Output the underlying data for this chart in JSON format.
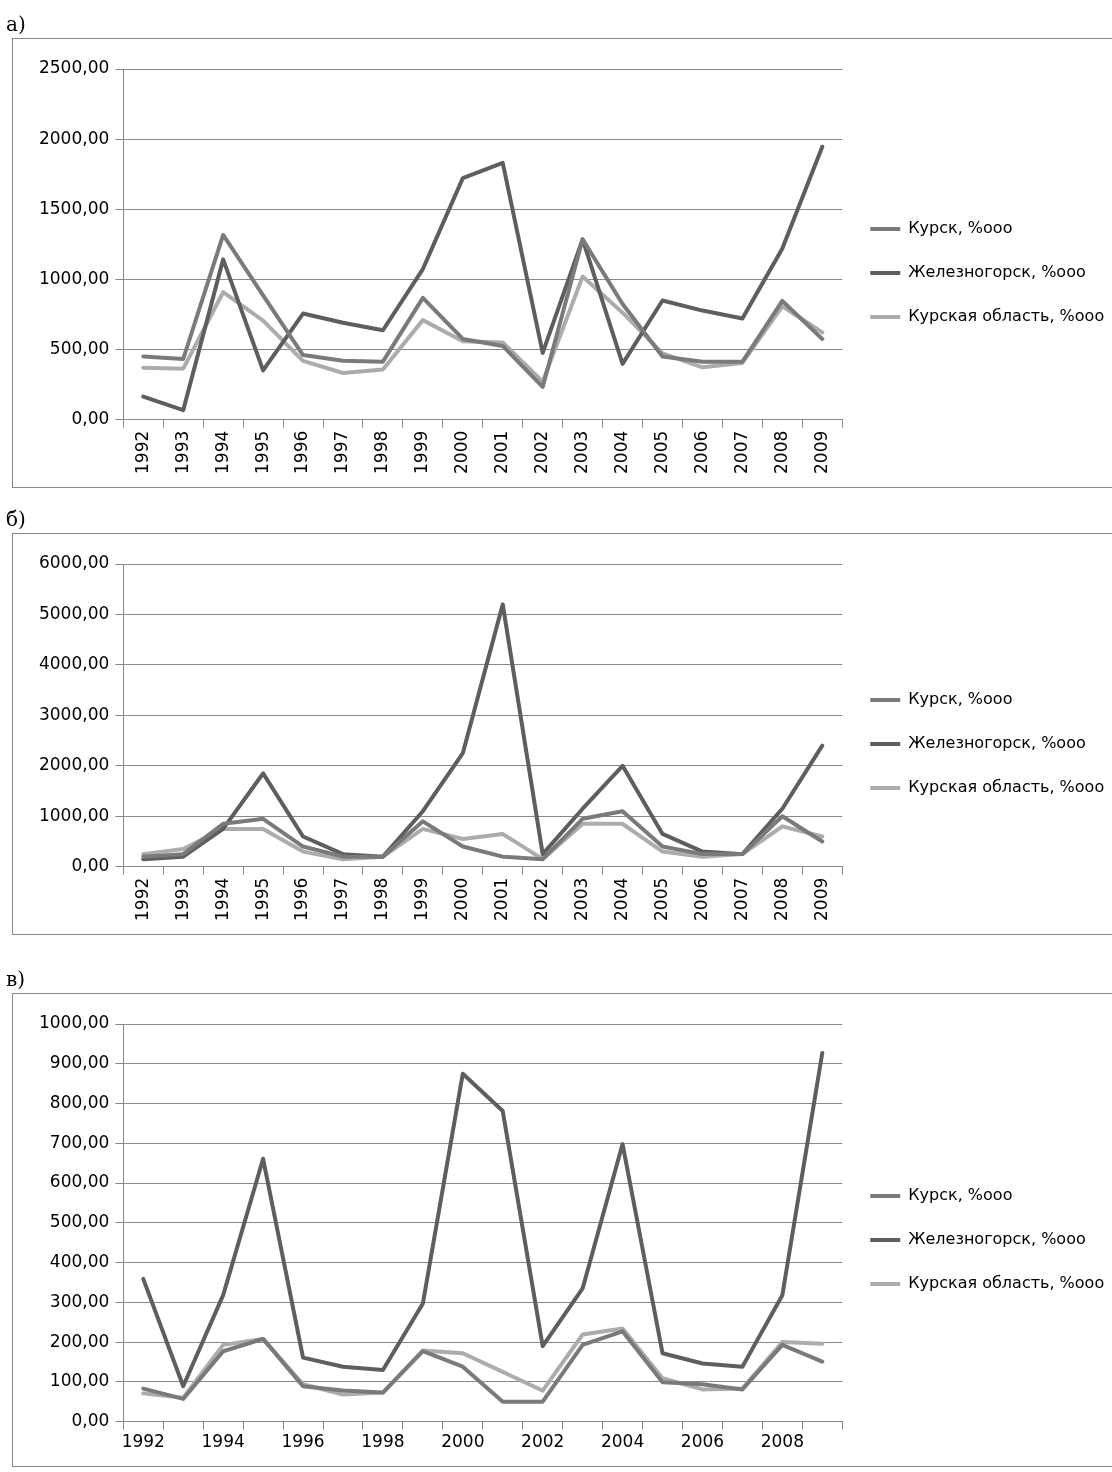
{
  "chart_data": [
    {
      "type": "line",
      "title": "а)",
      "categories": [
        "1992",
        "1993",
        "1994",
        "1995",
        "1996",
        "1997",
        "1998",
        "1999",
        "2000",
        "2001",
        "2002",
        "2003",
        "2004",
        "2005",
        "2006",
        "2007",
        "2008",
        "2009"
      ],
      "series": [
        {
          "name": "Курск, %ооо",
          "color": "#7a7a7a",
          "values": [
            451,
            433,
            1317,
            887,
            461,
            420,
            414,
            869,
            576,
            526,
            234,
            1286,
            825,
            451,
            414,
            414,
            847,
            576
          ]
        },
        {
          "name": "Железногорск, %ооо",
          "color": "#5e5e5e",
          "values": [
            165,
            68,
            1143,
            352,
            757,
            691,
            638,
            1074,
            1722,
            1831,
            476,
            1286,
            398,
            850,
            778,
            722,
            1220,
            1946
          ]
        },
        {
          "name": "Курская область, %ооо",
          "color": "#acacac",
          "values": [
            370,
            364,
            909,
            707,
            420,
            333,
            358,
            710,
            560,
            551,
            271,
            1021,
            763,
            473,
            374,
            405,
            809,
            623
          ]
        }
      ],
      "ylim": [
        0,
        2500
      ],
      "yticks": [
        {
          "value": 0,
          "label": "0,00"
        },
        {
          "value": 500,
          "label": "500,00"
        },
        {
          "value": 1000,
          "label": "1000,00"
        },
        {
          "value": 1500,
          "label": "1500,00"
        },
        {
          "value": 2000,
          "label": "2000,00"
        },
        {
          "value": 2500,
          "label": "2500,00"
        }
      ],
      "grid": "y",
      "legend": "right",
      "marker": "none",
      "line_style": "solid"
    },
    {
      "type": "line",
      "title": "б)",
      "categories": [
        "1992",
        "1993",
        "1994",
        "1995",
        "1996",
        "1997",
        "1998",
        "1999",
        "2000",
        "2001",
        "2002",
        "2003",
        "2004",
        "2005",
        "2006",
        "2007",
        "2008",
        "2009"
      ],
      "series": [
        {
          "name": "Курск, %ооо",
          "color": "#7a7a7a",
          "values": [
            200,
            250,
            850,
            950,
            400,
            200,
            200,
            900,
            400,
            200,
            150,
            950,
            1100,
            400,
            250,
            250,
            1000,
            500
          ]
        },
        {
          "name": "Железногорск, %ооо",
          "color": "#5e5e5e",
          "values": [
            150,
            200,
            750,
            1850,
            600,
            250,
            200,
            1100,
            2250,
            5200,
            250,
            1150,
            2000,
            650,
            300,
            250,
            1150,
            2400
          ]
        },
        {
          "name": "Курская область, %ооо",
          "color": "#acacac",
          "values": [
            250,
            350,
            750,
            750,
            300,
            150,
            200,
            750,
            550,
            650,
            150,
            850,
            850,
            300,
            200,
            250,
            800,
            600
          ]
        }
      ],
      "ylim": [
        0,
        6000
      ],
      "yticks": [
        {
          "value": 0,
          "label": "0,00"
        },
        {
          "value": 1000,
          "label": "1000,00"
        },
        {
          "value": 2000,
          "label": "2000,00"
        },
        {
          "value": 3000,
          "label": "3000,00"
        },
        {
          "value": 4000,
          "label": "4000,00"
        },
        {
          "value": 5000,
          "label": "5000,00"
        },
        {
          "value": 6000,
          "label": "6000,00"
        }
      ],
      "grid": "y",
      "legend": "right",
      "marker": "none",
      "line_style": "solid"
    },
    {
      "type": "line",
      "title": "в)",
      "categories": [
        "1992",
        null,
        "1994",
        null,
        "1996",
        null,
        "1998",
        null,
        "2000",
        null,
        "2002",
        null,
        "2004",
        null,
        "2006",
        null,
        "2008",
        null
      ],
      "series": [
        {
          "name": "Курск, %ооо",
          "color": "#7a7a7a",
          "values": [
            83,
            57,
            177,
            208,
            89,
            78,
            73,
            177,
            138,
            50,
            50,
            193,
            227,
            99,
            94,
            81,
            193,
            151
          ]
        },
        {
          "name": "Железногорск, %ооо",
          "color": "#5e5e5e",
          "values": [
            359,
            89,
            318,
            661,
            161,
            138,
            130,
            297,
            875,
            781,
            190,
            335,
            698,
            172,
            146,
            138,
            318,
            927
          ]
        },
        {
          "name": "Курская область, %ооо",
          "color": "#acacac",
          "values": [
            71,
            60,
            193,
            208,
            94,
            68,
            73,
            179,
            172,
            125,
            78,
            219,
            234,
            109,
            81,
            83,
            200,
            196
          ]
        }
      ],
      "ylim": [
        0,
        1000
      ],
      "yticks": [
        {
          "value": 0,
          "label": "0,00"
        },
        {
          "value": 100,
          "label": "100,00"
        },
        {
          "value": 200,
          "label": "200,00"
        },
        {
          "value": 300,
          "label": "300,00"
        },
        {
          "value": 400,
          "label": "400,00"
        },
        {
          "value": 500,
          "label": "500,00"
        },
        {
          "value": 600,
          "label": "600,00"
        },
        {
          "value": 700,
          "label": "700,00"
        },
        {
          "value": 800,
          "label": "800,00"
        },
        {
          "value": 900,
          "label": "900,00"
        },
        {
          "value": 1000,
          "label": "1000,00"
        }
      ],
      "grid": "y",
      "legend": "right",
      "marker": "none",
      "line_style": "solid"
    }
  ]
}
